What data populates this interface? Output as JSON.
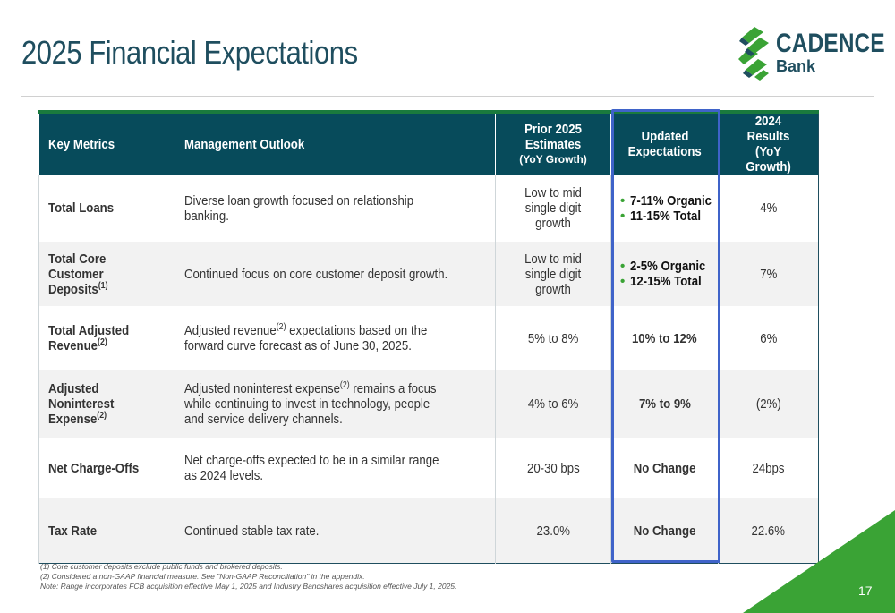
{
  "page": {
    "title": "2025 Financial Expectations",
    "page_number": "17"
  },
  "logo": {
    "name": "CADENCE",
    "sub": "Bank",
    "colors": {
      "primary": "#1f4e5f",
      "accent": "#3aa335"
    }
  },
  "table": {
    "headers": {
      "metric": "Key Metrics",
      "outlook": "Management Outlook",
      "prior": "Prior 2025 Estimates",
      "prior_sub": "(YoY Growth)",
      "updated_line1": "Updated",
      "updated_line2": "Expectations",
      "results_line1": "2024 Results",
      "results_line2": "(YoY Growth)"
    },
    "rows": [
      {
        "metric": "Total Loans",
        "outlook": "Diverse loan growth focused on relationship banking.",
        "prior": "Low to mid single digit growth",
        "updated_items": [
          "7-11% Organic",
          "11-15% Total"
        ],
        "result": "4%"
      },
      {
        "metric": "Total Core Customer Deposits",
        "metric_note": "(1)",
        "outlook": "Continued focus on core customer deposit growth.",
        "prior": "Low to mid single digit growth",
        "updated_items": [
          "2-5% Organic",
          "12-15% Total"
        ],
        "result": "7%"
      },
      {
        "metric": "Total Adjusted Revenue",
        "metric_note": "(2)",
        "outlook_pre": "Adjusted revenue",
        "outlook_note": "(2)",
        "outlook_post": " expectations based on the forward curve forecast as of June 30, 2025.",
        "prior": "5% to 8%",
        "updated": "10% to 12%",
        "result": "6%"
      },
      {
        "metric": "Adjusted Noninterest Expense",
        "metric_note": "(2)",
        "outlook_pre": "Adjusted noninterest expense",
        "outlook_note": "(2)",
        "outlook_post": " remains a focus while continuing to invest in technology, people and service delivery channels.",
        "prior": "4% to 6%",
        "updated": "7% to 9%",
        "result": "(2%)"
      },
      {
        "metric": "Net Charge-Offs",
        "outlook": "Net charge-offs expected to be in a similar range as 2024 levels.",
        "prior": "20-30 bps",
        "updated": "No Change",
        "result": "24bps"
      },
      {
        "metric": "Tax Rate",
        "outlook": "Continued stable tax rate.",
        "prior": "23.0%",
        "updated": "No Change",
        "result": "22.6%"
      }
    ]
  },
  "footnotes": [
    "(1) Core customer deposits exclude public funds and brokered deposits.",
    "(2) Considered a non-GAAP financial measure. See \"Non-GAAP Reconciliation\" in the appendix.",
    "Note: Range incorporates FCB acquisition effective May 1, 2025 and Industry Bancshares acquisition effective July 1, 2025."
  ]
}
